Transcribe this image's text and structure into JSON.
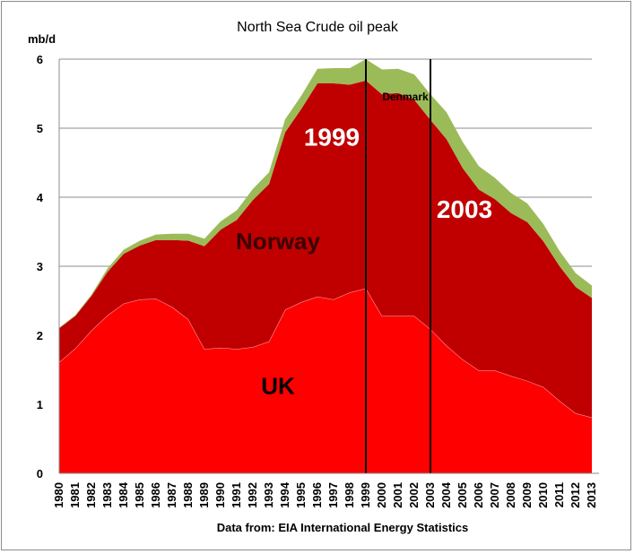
{
  "chart_data": {
    "type": "area",
    "stacked": true,
    "title": "North Sea Crude oil peak",
    "ylabel": "mb/d",
    "xlabel": "",
    "source": "Data from: EIA International Energy Statistics",
    "ylim": [
      0,
      6
    ],
    "yticks": [
      0,
      1,
      2,
      3,
      4,
      5,
      6
    ],
    "grid": true,
    "legend": "none",
    "categories": [
      "1980",
      "1981",
      "1982",
      "1983",
      "1984",
      "1985",
      "1986",
      "1987",
      "1988",
      "1989",
      "1990",
      "1991",
      "1992",
      "1993",
      "1994",
      "1995",
      "1996",
      "1997",
      "1998",
      "1999",
      "2000",
      "2001",
      "2002",
      "2003",
      "2004",
      "2005",
      "2006",
      "2007",
      "2008",
      "2009",
      "2010",
      "2011",
      "2012",
      "2013"
    ],
    "series": [
      {
        "name": "UK",
        "color": "#ff0000",
        "values": [
          1.61,
          1.81,
          2.07,
          2.29,
          2.46,
          2.52,
          2.53,
          2.41,
          2.23,
          1.8,
          1.82,
          1.8,
          1.83,
          1.91,
          2.37,
          2.48,
          2.56,
          2.52,
          2.62,
          2.68,
          2.28,
          2.28,
          2.28,
          2.09,
          1.85,
          1.65,
          1.49,
          1.49,
          1.41,
          1.34,
          1.25,
          1.05,
          0.87,
          0.81
        ]
      },
      {
        "name": "Norway",
        "color": "#c00000",
        "values": [
          0.49,
          0.47,
          0.5,
          0.63,
          0.72,
          0.78,
          0.85,
          0.97,
          1.14,
          1.49,
          1.71,
          1.87,
          2.13,
          2.28,
          2.57,
          2.8,
          3.09,
          3.13,
          3.01,
          3.01,
          3.21,
          3.23,
          3.13,
          3.03,
          2.99,
          2.77,
          2.62,
          2.48,
          2.36,
          2.3,
          2.11,
          1.95,
          1.83,
          1.73
        ]
      },
      {
        "name": "Denmark",
        "color": "#9bbb59",
        "values": [
          0.01,
          0.01,
          0.02,
          0.05,
          0.06,
          0.07,
          0.08,
          0.09,
          0.1,
          0.11,
          0.12,
          0.14,
          0.16,
          0.17,
          0.19,
          0.19,
          0.21,
          0.22,
          0.24,
          0.31,
          0.36,
          0.35,
          0.37,
          0.37,
          0.39,
          0.38,
          0.34,
          0.31,
          0.29,
          0.27,
          0.25,
          0.22,
          0.2,
          0.18
        ]
      }
    ],
    "area_labels": [
      {
        "series": "UK",
        "text": "UK",
        "year": "1994",
        "value": 1.15,
        "color": "#000000",
        "size": "large"
      },
      {
        "series": "Norway",
        "text": "Norway",
        "year": "1994",
        "value": 3.25,
        "color": "#3a0000",
        "size": "large"
      }
    ],
    "markers": [
      {
        "year": "1999",
        "label": "1999",
        "label_value": 4.75,
        "label_color": "#ffffff",
        "label_side": "left"
      },
      {
        "year": "2003",
        "label": "2003",
        "label_value": 3.7,
        "label_color": "#ffffff",
        "label_side": "right"
      }
    ],
    "annotations": [
      {
        "text": "Denmark",
        "year": "2001",
        "value": 5.4,
        "color": "#000000"
      }
    ]
  }
}
